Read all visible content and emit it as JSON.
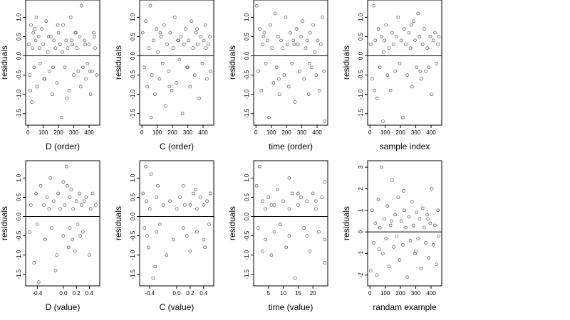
{
  "chart_data": [
    {
      "type": "scatter",
      "xlabel": "D (order)",
      "ylabel": "residuals",
      "xlim": [
        -15,
        470
      ],
      "ylim": [
        -1.8,
        1.45
      ],
      "xticks": [
        0,
        100,
        200,
        300,
        400
      ],
      "yticks": [
        1.0,
        0.5,
        0.0,
        -0.5,
        -1.0,
        -1.5
      ],
      "ytick_labels": [
        "1.0",
        "0.5",
        "0.0",
        "-0.5",
        "-1.0",
        "-1.5"
      ],
      "hline": 0,
      "x": [
        5,
        12,
        20,
        25,
        30,
        35,
        40,
        50,
        55,
        60,
        70,
        80,
        90,
        100,
        110,
        120,
        130,
        140,
        150,
        160,
        170,
        180,
        190,
        200,
        210,
        220,
        230,
        240,
        250,
        260,
        270,
        280,
        290,
        300,
        310,
        320,
        330,
        340,
        350,
        360,
        370,
        380,
        390,
        400,
        410,
        420,
        430,
        440,
        450,
        15,
        45,
        75,
        105,
        135,
        165,
        195,
        225,
        255,
        285,
        315,
        345,
        375,
        405,
        435
      ],
      "y": [
        0.3,
        -0.5,
        0.8,
        -1.2,
        0.2,
        0.6,
        -0.3,
        0.4,
        1.0,
        -0.8,
        0.5,
        -0.2,
        0.7,
        0.3,
        -0.6,
        0.9,
        0.1,
        -0.4,
        0.5,
        -1.0,
        0.4,
        0.2,
        -0.7,
        0.6,
        0.3,
        -1.6,
        0.8,
        -0.3,
        0.4,
        0.2,
        -0.9,
        1.0,
        0.3,
        -0.5,
        0.6,
        0.2,
        -0.4,
        0.5,
        1.3,
        -0.3,
        0.4,
        -0.6,
        -0.2,
        0.3,
        -1.0,
        -0.4,
        0.6,
        0.2,
        -0.5,
        -0.9,
        0.7,
        0.2,
        -0.6,
        0.5,
        -0.3,
        0.8,
        0.1,
        -1.1,
        0.4,
        0.6,
        -0.8,
        0.3,
        -0.4,
        0.5
      ]
    },
    {
      "type": "scatter",
      "xlabel": "C (order)",
      "ylabel": "residuals",
      "xlim": [
        -15,
        470
      ],
      "ylim": [
        -1.8,
        1.45
      ],
      "xticks": [
        0,
        100,
        200,
        300,
        400
      ],
      "yticks": [
        1.0,
        0.5,
        0.0,
        -0.5,
        -1.0,
        -1.5
      ],
      "ytick_labels": [
        "1.0",
        "0.5",
        "0.0",
        "-0.5",
        "-1.0",
        "-1.5"
      ],
      "hline": 0,
      "x": [
        5,
        15,
        25,
        35,
        45,
        55,
        65,
        75,
        85,
        95,
        105,
        115,
        125,
        135,
        145,
        155,
        165,
        175,
        185,
        195,
        205,
        215,
        225,
        235,
        245,
        255,
        265,
        275,
        285,
        295,
        305,
        315,
        325,
        335,
        345,
        355,
        365,
        375,
        385,
        395,
        405,
        415,
        425,
        435,
        445,
        450,
        60,
        120,
        180,
        240,
        300,
        360,
        420
      ],
      "y": [
        0.6,
        -0.3,
        0.9,
        -0.8,
        0.2,
        1.3,
        -0.5,
        0.4,
        -1.0,
        0.7,
        0.1,
        -0.6,
        0.5,
        -0.2,
        0.8,
        -1.3,
        0.3,
        -0.4,
        0.6,
        -0.9,
        0.2,
        1.0,
        -0.7,
        0.4,
        -0.1,
        0.5,
        -1.5,
        0.3,
        0.7,
        -0.3,
        0.4,
        -0.8,
        0.9,
        0.2,
        -0.5,
        0.6,
        0.3,
        -1.1,
        0.5,
        -0.2,
        0.4,
        0.8,
        -0.6,
        0.3,
        0.5,
        -0.4,
        -1.6,
        0.6,
        -0.8,
        0.4,
        -0.3,
        0.7,
        0.2
      ]
    },
    {
      "type": "scatter",
      "xlabel": "time (order)",
      "ylabel": "residuals",
      "xlim": [
        -15,
        470
      ],
      "ylim": [
        -1.8,
        1.45
      ],
      "xticks": [
        0,
        100,
        200,
        300,
        400
      ],
      "yticks": [
        1.0,
        0.5,
        0.0,
        -0.5,
        -1.0,
        -1.5
      ],
      "ytick_labels": [
        "1.0",
        "0.5",
        "0.0",
        "-0.5",
        "-1.0",
        "-1.5"
      ],
      "hline": 0,
      "x": [
        5,
        15,
        25,
        35,
        45,
        55,
        65,
        75,
        85,
        95,
        105,
        115,
        125,
        135,
        145,
        155,
        165,
        175,
        185,
        195,
        205,
        215,
        225,
        235,
        245,
        255,
        265,
        275,
        285,
        295,
        305,
        315,
        325,
        335,
        345,
        355,
        365,
        375,
        385,
        395,
        405,
        415,
        425,
        435,
        445,
        450,
        50,
        150,
        250,
        350
      ],
      "y": [
        1.3,
        -0.4,
        0.7,
        -0.9,
        0.3,
        0.6,
        -0.2,
        0.4,
        -1.6,
        0.8,
        0.2,
        -0.7,
        1.1,
        -0.3,
        0.5,
        -1.0,
        0.4,
        0.2,
        -0.5,
        1.0,
        0.3,
        -0.8,
        0.6,
        -0.2,
        0.4,
        -1.2,
        0.7,
        0.3,
        -0.4,
        0.5,
        0.9,
        -0.6,
        0.2,
        0.4,
        -1.0,
        0.6,
        -0.3,
        0.8,
        0.1,
        -0.5,
        0.4,
        -0.9,
        0.3,
        1.0,
        -0.4,
        -1.7,
        0.5,
        -0.6,
        0.3,
        -0.2
      ]
    },
    {
      "type": "scatter",
      "xlabel": "sample index",
      "ylabel": "residuals",
      "xlim": [
        -15,
        470
      ],
      "ylim": [
        -1.8,
        1.45
      ],
      "xticks": [
        0,
        100,
        200,
        300,
        400
      ],
      "yticks": [
        1.0,
        0.5,
        0.0,
        -0.5,
        -1.0,
        -1.5
      ],
      "ytick_labels": [
        "1.0",
        "0.5",
        "0.0",
        "-0.5",
        "-1.0",
        "-1.5"
      ],
      "hline": 0,
      "x": [
        5,
        15,
        25,
        35,
        45,
        55,
        65,
        75,
        85,
        95,
        105,
        115,
        125,
        135,
        145,
        155,
        165,
        175,
        185,
        195,
        205,
        215,
        225,
        235,
        245,
        255,
        265,
        275,
        285,
        295,
        305,
        315,
        325,
        335,
        345,
        355,
        365,
        375,
        385,
        395,
        405,
        415,
        425,
        435,
        445,
        450,
        30,
        90,
        270,
        330
      ],
      "y": [
        0.3,
        -0.6,
        1.3,
        0.4,
        -1.1,
        0.7,
        -0.3,
        0.5,
        -1.7,
        0.4,
        0.8,
        -0.5,
        0.2,
        -0.9,
        0.6,
        0.3,
        -0.4,
        0.5,
        1.0,
        -0.2,
        0.4,
        -1.6,
        0.7,
        0.3,
        -0.5,
        0.6,
        0.2,
        -0.8,
        0.9,
        0.4,
        -0.3,
        1.1,
        0.5,
        -0.6,
        0.3,
        0.7,
        -0.4,
        0.2,
        -0.3,
        0.5,
        -1.0,
        0.4,
        0.6,
        -0.2,
        0.3,
        0.5,
        -0.9,
        0.1,
        0.8,
        -0.4
      ]
    },
    {
      "type": "scatter",
      "xlabel": "D (value)",
      "ylabel": "residuals",
      "xlim": [
        -0.58,
        0.56
      ],
      "ylim": [
        -1.8,
        1.45
      ],
      "xticks": [
        -0.4,
        0.0,
        0.2,
        0.4
      ],
      "xtick_labels": [
        "-0.4",
        "0.0",
        "0.2",
        "0.4"
      ],
      "yticks": [
        1.0,
        0.5,
        0.0,
        -0.5,
        -1.0,
        -1.5
      ],
      "ytick_labels": [
        "1.0",
        "0.5",
        "0.0",
        "-0.5",
        "-1.0",
        "-1.5"
      ],
      "hline": 0,
      "x": [
        -0.52,
        -0.5,
        -0.45,
        -0.42,
        -0.4,
        -0.35,
        -0.3,
        -0.28,
        -0.25,
        -0.2,
        -0.18,
        -0.15,
        -0.1,
        -0.08,
        -0.05,
        0.0,
        0.0,
        0.02,
        0.05,
        0.08,
        0.1,
        0.1,
        0.12,
        0.15,
        0.18,
        0.2,
        0.22,
        0.25,
        0.28,
        0.3,
        0.35,
        0.4,
        0.42,
        0.45,
        0.5,
        -0.38,
        -0.12,
        0.06,
        0.14,
        0.32,
        -0.22,
        0.26
      ],
      "y": [
        -0.4,
        0.3,
        -1.2,
        0.6,
        -0.2,
        0.8,
        0.3,
        -0.6,
        0.5,
        1.0,
        -0.3,
        0.4,
        -1.0,
        0.6,
        0.2,
        0.9,
        -0.5,
        0.3,
        1.3,
        -0.8,
        0.5,
        -0.3,
        0.7,
        0.2,
        -0.9,
        0.4,
        -0.2,
        0.6,
        0.3,
        -0.4,
        0.5,
        -1.0,
        0.2,
        0.6,
        0.3,
        -1.7,
        -1.4,
        0.8,
        -0.6,
        0.4,
        0.2,
        -0.5
      ]
    },
    {
      "type": "scatter",
      "xlabel": "C (value)",
      "ylabel": "residuals",
      "xlim": [
        -0.55,
        0.55
      ],
      "ylim": [
        -1.8,
        1.45
      ],
      "xticks": [
        -0.4,
        0.0,
        0.2,
        0.4
      ],
      "xtick_labels": [
        "-0.4",
        "0.0",
        "0.2",
        "0.4"
      ],
      "yticks": [
        1.0,
        0.5,
        0.0,
        -0.5,
        -1.0,
        -1.5
      ],
      "ytick_labels": [
        "1.0",
        "0.5",
        "0.0",
        "-0.5",
        "-1.0",
        "-1.5"
      ],
      "hline": 0,
      "x": [
        -0.5,
        -0.48,
        -0.46,
        -0.45,
        -0.42,
        -0.4,
        -0.38,
        -0.35,
        -0.3,
        -0.3,
        -0.28,
        -0.25,
        -0.2,
        -0.15,
        -0.1,
        -0.05,
        0.0,
        0.05,
        0.1,
        0.1,
        0.15,
        0.2,
        0.2,
        0.25,
        0.3,
        0.3,
        0.35,
        0.4,
        0.4,
        0.45,
        0.48,
        0.5,
        -0.44,
        -0.32,
        0.12,
        0.28,
        0.42
      ],
      "y": [
        0.6,
        -0.3,
        1.3,
        0.4,
        -0.8,
        0.2,
        1.1,
        -1.6,
        0.5,
        -0.4,
        0.8,
        -0.2,
        0.3,
        -1.0,
        0.4,
        -0.6,
        0.2,
        0.5,
        -0.3,
        0.8,
        -0.5,
        0.3,
        -0.9,
        0.6,
        0.2,
        -0.4,
        0.5,
        0.3,
        -0.6,
        0.4,
        -0.2,
        0.6,
        -0.5,
        -1.3,
        0.3,
        0.7,
        -0.8
      ]
    },
    {
      "type": "scatter",
      "xlabel": "time (value)",
      "ylabel": "residuals",
      "xlim": [
        0,
        25
      ],
      "ylim": [
        -1.8,
        1.45
      ],
      "xticks": [
        5,
        10,
        15,
        20
      ],
      "yticks": [
        1.0,
        0.5,
        0.0,
        -0.5,
        -1.0,
        -1.5
      ],
      "ytick_labels": [
        "1.0",
        "0.5",
        "0.0",
        "-0.5",
        "-1.0",
        "-1.5"
      ],
      "hline": 0,
      "x": [
        1,
        1.5,
        2,
        3,
        4,
        4,
        5,
        6,
        7,
        7,
        8,
        9,
        10,
        11,
        12,
        12,
        12,
        13,
        14,
        15,
        16,
        17,
        18,
        19,
        20,
        21,
        22,
        23,
        24,
        24,
        24,
        3,
        6,
        9,
        15,
        18,
        21
      ],
      "y": [
        0.8,
        -0.3,
        1.3,
        0.4,
        -0.6,
        0.2,
        0.5,
        -1.0,
        0.3,
        -0.4,
        0.7,
        -0.2,
        0.4,
        -0.8,
        1.0,
        0.2,
        -0.5,
        0.6,
        -1.6,
        0.3,
        0.5,
        -0.3,
        0.4,
        -0.9,
        0.6,
        0.2,
        -0.4,
        0.5,
        0.9,
        -0.6,
        -1.2,
        -0.9,
        0.3,
        -0.2,
        0.6,
        -0.5,
        0.4
      ]
    },
    {
      "type": "scatter",
      "xlabel": "randam example",
      "ylabel": "residuals",
      "xlim": [
        -15,
        470
      ],
      "ylim": [
        -2.5,
        3.3
      ],
      "xticks": [
        0,
        100,
        200,
        300,
        400
      ],
      "yticks": [
        3,
        2,
        1,
        0,
        -1,
        -2
      ],
      "ytick_labels": [
        "3",
        "2",
        "1",
        "0",
        "-1",
        "-2"
      ],
      "hline": 0,
      "x": [
        5,
        15,
        25,
        35,
        45,
        55,
        65,
        75,
        85,
        95,
        105,
        115,
        125,
        135,
        145,
        155,
        165,
        175,
        185,
        195,
        205,
        215,
        225,
        235,
        245,
        255,
        265,
        275,
        285,
        295,
        305,
        315,
        325,
        335,
        345,
        355,
        365,
        375,
        385,
        395,
        405,
        415,
        425,
        435,
        445,
        450,
        60,
        140,
        220,
        300,
        380
      ],
      "y": [
        -1.8,
        1.0,
        -0.5,
        0.4,
        -2.0,
        1.5,
        0.2,
        3.0,
        -1.0,
        0.6,
        -0.3,
        1.2,
        -1.6,
        0.3,
        2.4,
        -0.7,
        0.8,
        -0.2,
        1.6,
        -1.3,
        0.5,
        -0.6,
        1.0,
        0.2,
        -2.1,
        0.7,
        -0.4,
        1.4,
        0.3,
        -1.0,
        0.9,
        -0.3,
        0.6,
        -1.7,
        1.1,
        0.2,
        -0.5,
        0.8,
        -1.2,
        0.4,
        2.0,
        -0.6,
        0.3,
        -1.5,
        1.0,
        -0.2,
        -0.8,
        0.5,
        1.9,
        -0.9,
        0.6
      ]
    }
  ]
}
